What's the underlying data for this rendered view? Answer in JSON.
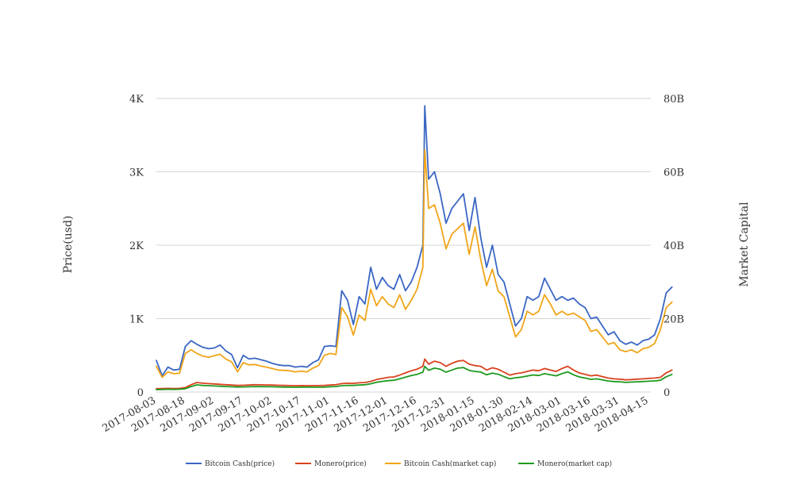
{
  "chart_data": {
    "type": "line",
    "title": "",
    "ylabel_left": "Price(usd)",
    "ylabel_right": "Market Capital",
    "ylim_left": [
      0,
      4000
    ],
    "ylim_right": [
      0,
      80000000000
    ],
    "yticks_left": [
      "0",
      "1K",
      "2K",
      "3K",
      "4K"
    ],
    "yticks_right": [
      "0",
      "20B",
      "40B",
      "60B",
      "80B"
    ],
    "grid": true,
    "legend_position": "bottom",
    "x_tick_labels": [
      "2017-08-03",
      "2017-08-18",
      "2017-09-02",
      "2017-09-17",
      "2017-10-02",
      "2017-10-17",
      "2017-11-01",
      "2017-11-16",
      "2017-12-01",
      "2017-12-16",
      "2017-12-31",
      "2018-01-15",
      "2018-01-30",
      "2018-02-14",
      "2018-03-01",
      "2018-03-16",
      "2018-03-31",
      "2018-04-15"
    ],
    "x": [
      "2017-08-03",
      "2017-08-06",
      "2017-08-09",
      "2017-08-12",
      "2017-08-15",
      "2017-08-18",
      "2017-08-21",
      "2017-08-24",
      "2017-08-27",
      "2017-08-30",
      "2017-09-02",
      "2017-09-05",
      "2017-09-08",
      "2017-09-11",
      "2017-09-14",
      "2017-09-17",
      "2017-09-20",
      "2017-09-23",
      "2017-09-26",
      "2017-09-29",
      "2017-10-02",
      "2017-10-05",
      "2017-10-08",
      "2017-10-11",
      "2017-10-14",
      "2017-10-17",
      "2017-10-20",
      "2017-10-23",
      "2017-10-26",
      "2017-10-29",
      "2017-11-01",
      "2017-11-04",
      "2017-11-07",
      "2017-11-10",
      "2017-11-13",
      "2017-11-16",
      "2017-11-19",
      "2017-11-22",
      "2017-11-25",
      "2017-11-28",
      "2017-12-01",
      "2017-12-04",
      "2017-12-07",
      "2017-12-10",
      "2017-12-13",
      "2017-12-16",
      "2017-12-19",
      "2017-12-20",
      "2017-12-22",
      "2017-12-25",
      "2017-12-28",
      "2017-12-31",
      "2018-01-03",
      "2018-01-06",
      "2018-01-09",
      "2018-01-12",
      "2018-01-15",
      "2018-01-18",
      "2018-01-21",
      "2018-01-24",
      "2018-01-27",
      "2018-01-30",
      "2018-02-02",
      "2018-02-05",
      "2018-02-08",
      "2018-02-11",
      "2018-02-14",
      "2018-02-17",
      "2018-02-20",
      "2018-02-23",
      "2018-02-26",
      "2018-03-01",
      "2018-03-04",
      "2018-03-07",
      "2018-03-10",
      "2018-03-13",
      "2018-03-16",
      "2018-03-19",
      "2018-03-22",
      "2018-03-25",
      "2018-03-28",
      "2018-03-31",
      "2018-04-03",
      "2018-04-06",
      "2018-04-09",
      "2018-04-12",
      "2018-04-15",
      "2018-04-18",
      "2018-04-21",
      "2018-04-24",
      "2018-04-27"
    ],
    "series": [
      {
        "name": "Bitcoin Cash(price)",
        "color": "#3a66c4",
        "axis": "left",
        "values": [
          430,
          220,
          340,
          300,
          310,
          620,
          700,
          650,
          610,
          590,
          600,
          640,
          560,
          510,
          330,
          500,
          450,
          460,
          440,
          420,
          390,
          370,
          360,
          360,
          340,
          350,
          340,
          400,
          440,
          620,
          630,
          620,
          1380,
          1250,
          920,
          1300,
          1200,
          1700,
          1400,
          1560,
          1450,
          1400,
          1600,
          1380,
          1500,
          1700,
          2000,
          3900,
          2900,
          3000,
          2700,
          2300,
          2500,
          2600,
          2700,
          2200,
          2650,
          2100,
          1700,
          2000,
          1600,
          1500,
          1200,
          900,
          1000,
          1300,
          1250,
          1300,
          1550,
          1400,
          1250,
          1300,
          1250,
          1280,
          1200,
          1150,
          1000,
          1020,
          900,
          780,
          820,
          700,
          650,
          680,
          640,
          700,
          720,
          780,
          1000,
          1350,
          1430
        ]
      },
      {
        "name": "Monero(price)",
        "color": "#d9431f",
        "axis": "left",
        "values": [
          45,
          48,
          50,
          48,
          50,
          60,
          100,
          130,
          120,
          115,
          110,
          105,
          100,
          95,
          90,
          92,
          95,
          100,
          98,
          96,
          95,
          92,
          90,
          88,
          86,
          88,
          87,
          88,
          88,
          90,
          95,
          100,
          115,
          120,
          118,
          125,
          130,
          145,
          170,
          185,
          200,
          205,
          230,
          260,
          290,
          310,
          350,
          450,
          380,
          420,
          400,
          350,
          390,
          420,
          430,
          380,
          360,
          350,
          300,
          330,
          310,
          270,
          230,
          250,
          260,
          280,
          300,
          290,
          320,
          300,
          280,
          320,
          350,
          300,
          260,
          240,
          220,
          230,
          210,
          190,
          180,
          175,
          165,
          170,
          175,
          180,
          185,
          190,
          200,
          260,
          300
        ]
      },
      {
        "name": "Bitcoin Cash(market cap)",
        "color": "#f0a518",
        "axis": "right",
        "values": [
          7000000000,
          4000000000,
          5500000000,
          5000000000,
          5100000000,
          10500000000,
          11500000000,
          10500000000,
          9800000000,
          9500000000,
          9900000000,
          10300000000,
          9000000000,
          8200000000,
          5500000000,
          8000000000,
          7400000000,
          7500000000,
          7100000000,
          6800000000,
          6400000000,
          6000000000,
          5900000000,
          5800000000,
          5500000000,
          5700000000,
          5500000000,
          6500000000,
          7200000000,
          10000000000,
          10500000000,
          10200000000,
          23000000000,
          20500000000,
          15500000000,
          21000000000,
          19500000000,
          28000000000,
          23500000000,
          26000000000,
          24000000000,
          23000000000,
          26500000000,
          22500000000,
          25000000000,
          28000000000,
          34000000000,
          66000000000,
          50000000000,
          51000000000,
          46000000000,
          39000000000,
          43000000000,
          44500000000,
          46000000000,
          37500000000,
          45000000000,
          36000000000,
          29000000000,
          33500000000,
          27500000000,
          26000000000,
          20500000000,
          15000000000,
          17000000000,
          22000000000,
          21000000000,
          22000000000,
          26500000000,
          24000000000,
          21000000000,
          22000000000,
          21000000000,
          21500000000,
          20500000000,
          19500000000,
          16500000000,
          17000000000,
          15000000000,
          13000000000,
          13500000000,
          11500000000,
          11000000000,
          11500000000,
          10700000000,
          11800000000,
          12200000000,
          13200000000,
          17000000000,
          23000000000,
          24500000000
        ]
      },
      {
        "name": "Monero(market cap)",
        "color": "#1f9a1f",
        "axis": "right",
        "values": [
          650000000,
          700000000,
          750000000,
          720000000,
          750000000,
          900000000,
          1500000000,
          1950000000,
          1800000000,
          1720000000,
          1650000000,
          1580000000,
          1500000000,
          1430000000,
          1360000000,
          1380000000,
          1430000000,
          1500000000,
          1470000000,
          1440000000,
          1430000000,
          1380000000,
          1350000000,
          1320000000,
          1300000000,
          1320000000,
          1310000000,
          1320000000,
          1320000000,
          1350000000,
          1430000000,
          1500000000,
          1730000000,
          1820000000,
          1800000000,
          1900000000,
          2000000000,
          2250000000,
          2650000000,
          2900000000,
          3100000000,
          3200000000,
          3600000000,
          4050000000,
          4500000000,
          4800000000,
          5400000000,
          7000000000,
          5900000000,
          6500000000,
          6200000000,
          5400000000,
          6000000000,
          6500000000,
          6650000000,
          5900000000,
          5600000000,
          5450000000,
          4700000000,
          5150000000,
          4850000000,
          4200000000,
          3600000000,
          3900000000,
          4050000000,
          4350000000,
          4650000000,
          4500000000,
          5000000000,
          4700000000,
          4400000000,
          5000000000,
          5500000000,
          4700000000,
          4100000000,
          3800000000,
          3450000000,
          3600000000,
          3300000000,
          3000000000,
          2850000000,
          2780000000,
          2620000000,
          2700000000,
          2780000000,
          2850000000,
          2950000000,
          3020000000,
          3200000000,
          4150000000,
          4800000000
        ]
      }
    ]
  }
}
